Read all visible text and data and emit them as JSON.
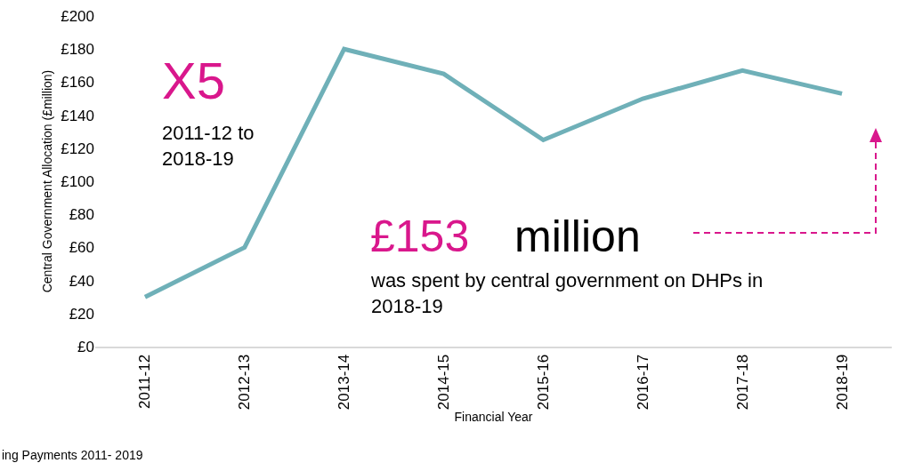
{
  "chart_data": {
    "type": "line",
    "xlabel": "Financial Year",
    "ylabel": "Central Government Allocation (£million)",
    "categories": [
      "2011-12",
      "2012-13",
      "2013-14",
      "2014-15",
      "2015-16",
      "2016-17",
      "2017-18",
      "2018-19"
    ],
    "series": [
      {
        "color": "#6fb0b8",
        "values": [
          30,
          60,
          180,
          165,
          125,
          150,
          167,
          153
        ]
      }
    ],
    "ylim": [
      0,
      200
    ],
    "yticks": [
      {
        "value": 0,
        "label": "£0"
      },
      {
        "value": 20,
        "label": "£20"
      },
      {
        "value": 40,
        "label": "£40"
      },
      {
        "value": 60,
        "label": "£60"
      },
      {
        "value": 80,
        "label": "£80"
      },
      {
        "value": 100,
        "label": "£100"
      },
      {
        "value": 120,
        "label": "£120"
      },
      {
        "value": 140,
        "label": "£140"
      },
      {
        "value": 160,
        "label": "£160"
      },
      {
        "value": 180,
        "label": "£180"
      },
      {
        "value": 200,
        "label": "£200"
      }
    ],
    "grid": false,
    "legend": false,
    "marker": "none",
    "line_style": "solid",
    "annotations": [
      "X5",
      "2011-12 to 2018-19",
      "£153",
      "million",
      "was spent by central government on DHPs in 2018-19",
      "ing Payments 2011- 2019"
    ]
  }
}
